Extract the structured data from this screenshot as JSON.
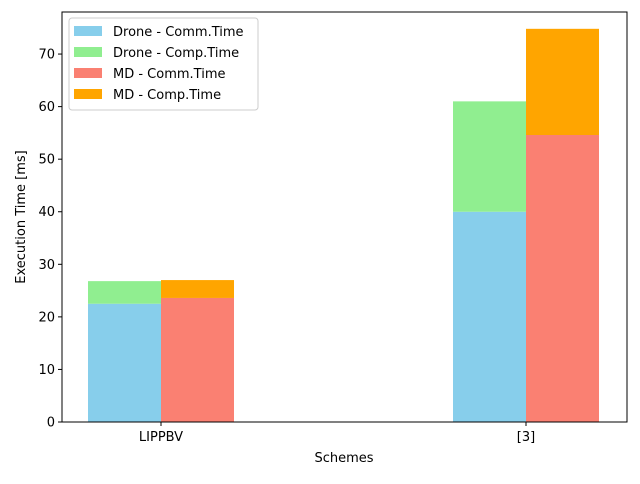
{
  "chart_data": {
    "type": "bar",
    "stacked": true,
    "grouped": true,
    "categories": [
      "LIPPBV",
      "[3]"
    ],
    "xlabel": "Schemes",
    "ylabel": "Execution Time [ms]",
    "ylim": [
      0,
      78
    ],
    "yticks": [
      0,
      10,
      20,
      30,
      40,
      50,
      60,
      70
    ],
    "grid": false,
    "legend_position": "top-left",
    "groups": [
      {
        "name": "Drone",
        "series": [
          {
            "name": "Drone - Comm.Time",
            "color": "#87ceeb",
            "values": [
              22.5,
              40.0
            ]
          },
          {
            "name": "Drone - Comp.Time",
            "color": "#90ee90",
            "values": [
              4.3,
              21.0
            ]
          }
        ]
      },
      {
        "name": "MD",
        "series": [
          {
            "name": "MD - Comm.Time",
            "color": "#fa8072",
            "values": [
              23.6,
              54.6
            ]
          },
          {
            "name": "MD - Comp.Time",
            "color": "#ffa500",
            "values": [
              3.4,
              20.2
            ]
          }
        ]
      }
    ]
  }
}
